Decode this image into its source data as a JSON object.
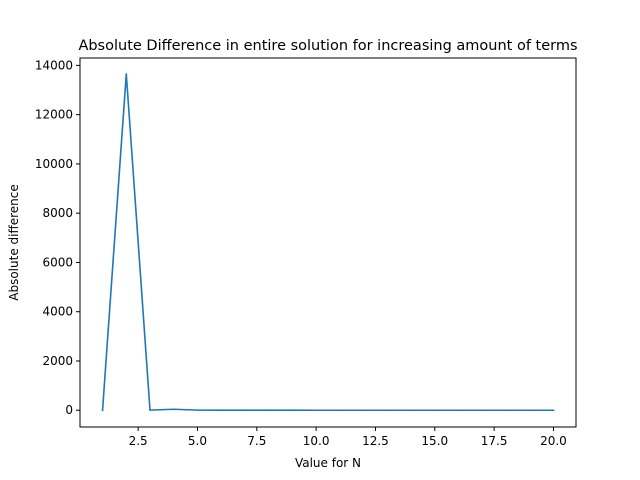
{
  "chart_data": {
    "type": "line",
    "title": "Absolute Difference in entire solution for increasing amount of terms",
    "xlabel": "Value for N",
    "ylabel": "Absolute difference",
    "xlim": [
      0.05,
      20.95
    ],
    "ylim": [
      -680,
      14300
    ],
    "x_ticks": [
      2.5,
      5.0,
      7.5,
      10.0,
      12.5,
      15.0,
      17.5,
      20.0
    ],
    "x_tick_labels": [
      "2.5",
      "5.0",
      "7.5",
      "10.0",
      "12.5",
      "15.0",
      "17.5",
      "20.0"
    ],
    "y_ticks": [
      0,
      2000,
      4000,
      6000,
      8000,
      10000,
      12000,
      14000
    ],
    "y_tick_labels": [
      "0",
      "2000",
      "4000",
      "6000",
      "8000",
      "10000",
      "12000",
      "14000"
    ],
    "grid": false,
    "series": [
      {
        "color": "#1f77b4",
        "x": [
          1,
          2,
          3,
          4,
          5,
          6,
          7,
          8,
          9,
          10,
          11,
          12,
          13,
          14,
          15,
          16,
          17,
          18,
          19,
          20
        ],
        "y": [
          0,
          13650,
          5,
          40,
          5,
          2,
          1,
          1,
          1,
          0,
          0,
          0,
          0,
          0,
          0,
          0,
          0,
          0,
          0,
          0
        ]
      }
    ]
  }
}
